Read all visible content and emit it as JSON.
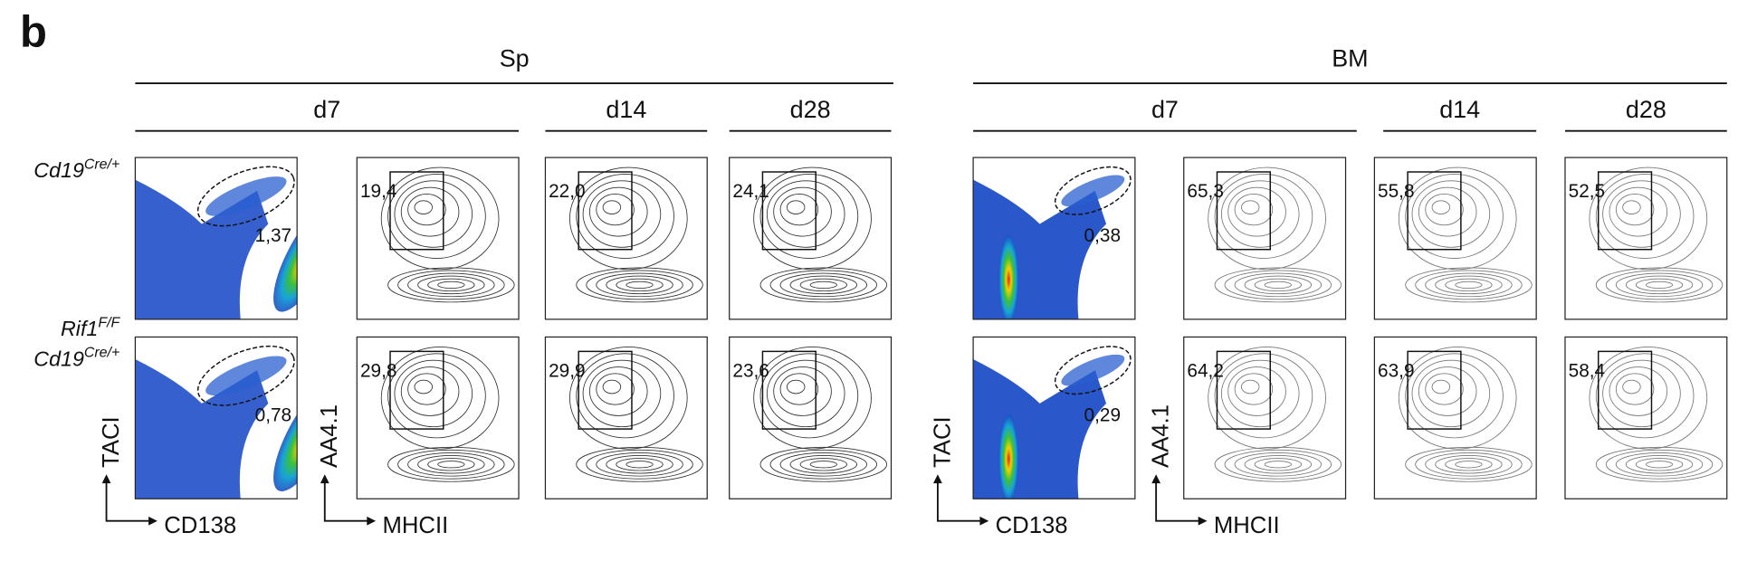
{
  "panel_label": "b",
  "row_labels": [
    [
      {
        "text": "Cd19",
        "sup": "Cre/+"
      }
    ],
    [
      {
        "text": "Rif1",
        "sup": "F/F"
      },
      {
        "text": "Cd19",
        "sup": "Cre/+"
      }
    ]
  ],
  "axis_labels": {
    "dot_plot": {
      "y": "TACI",
      "x": "CD138"
    },
    "contour_plot": {
      "y": "AA4.1",
      "x": "MHCII"
    }
  },
  "groups": [
    {
      "title": "Sp",
      "timepoints": [
        "d7",
        "d14",
        "d28"
      ],
      "gates": [
        [
          "1,37",
          "19,4",
          "22,0",
          "24,1"
        ],
        [
          "0,78",
          "29,8",
          "29,9",
          "23,6"
        ]
      ]
    },
    {
      "title": "BM",
      "timepoints": [
        "d7",
        "d14",
        "d28"
      ],
      "gates": [
        [
          "0,38",
          "65,3",
          "55,8",
          "52,5"
        ],
        [
          "0,29",
          "64,2",
          "63,9",
          "58,4"
        ]
      ]
    }
  ]
}
